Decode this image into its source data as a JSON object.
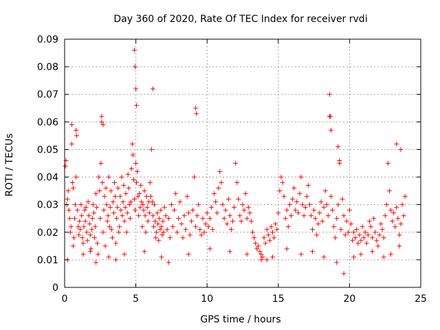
{
  "chart_data": {
    "type": "scatter",
    "title": "Day 360 of 2020, Rate Of TEC Index for receiver rvdi",
    "xlabel": "GPS time / hours",
    "ylabel": "ROTI / TECUs",
    "xlim": [
      0,
      25
    ],
    "ylim": [
      0,
      0.09
    ],
    "xticks": [
      "0",
      "5",
      "10",
      "15",
      "20",
      "25"
    ],
    "yticks": [
      "0",
      "0.01",
      "0.02",
      "0.03",
      "0.04",
      "0.05",
      "0.06",
      "0.07",
      "0.08",
      "0.09"
    ],
    "grid": true,
    "marker": "plus",
    "color": "#ff0000",
    "series": [
      {
        "x": [
          0.05,
          0.1,
          0.15,
          0.2,
          0.25,
          0.3,
          0.35,
          0.4,
          0.45,
          0.5,
          0.55,
          0.6,
          0.65,
          0.7,
          0.75,
          0.8,
          0.85,
          0.9,
          0.95,
          1.0,
          1.05,
          1.1,
          1.15,
          1.2,
          1.25,
          1.3,
          1.35,
          1.4,
          1.45,
          1.5,
          1.55,
          1.6,
          1.65,
          1.7,
          1.75,
          1.8,
          1.85,
          1.9,
          1.95,
          2.0,
          2.05,
          2.1,
          2.15,
          2.2,
          2.25,
          2.3,
          2.35,
          2.4,
          2.45,
          2.5,
          2.55,
          2.6,
          2.65,
          2.7,
          2.75,
          2.8,
          2.85,
          2.9,
          2.95,
          3.0,
          3.05,
          3.1,
          3.15,
          3.2,
          3.25,
          3.3,
          3.35,
          3.4,
          3.45,
          3.5,
          3.55,
          3.6,
          3.65,
          3.7,
          3.75,
          3.8,
          3.85,
          3.9,
          3.95,
          4.0,
          4.05,
          4.1,
          4.15,
          4.2,
          4.25,
          4.3,
          4.35,
          4.4,
          4.45,
          4.5,
          4.55,
          4.6,
          4.65,
          4.7,
          4.75,
          4.8,
          4.85,
          4.9,
          4.95,
          5.0,
          5.05,
          5.1,
          5.15,
          5.2,
          5.25,
          5.3,
          5.35,
          5.4,
          5.45,
          5.5,
          5.55,
          5.6,
          5.65,
          5.7,
          5.75,
          5.8,
          5.85,
          5.9,
          5.95,
          6.0,
          6.05,
          6.1,
          6.15,
          6.2,
          6.25,
          6.3,
          6.35,
          6.4,
          6.45,
          6.5,
          6.55,
          6.6,
          6.65,
          6.7,
          6.75,
          6.8,
          6.85,
          6.9,
          6.95,
          7.0,
          7.1,
          7.2,
          7.3,
          7.4,
          7.5,
          7.6,
          7.7,
          7.8,
          7.9,
          8.0,
          8.1,
          8.2,
          8.3,
          8.4,
          8.5,
          8.6,
          8.7,
          8.8,
          8.9,
          9.0,
          9.1,
          9.2,
          9.3,
          9.4,
          9.5,
          9.6,
          9.7,
          9.8,
          9.9,
          10.0,
          10.1,
          10.2,
          10.3,
          10.4,
          10.5,
          10.6,
          10.7,
          10.8,
          10.9,
          11.0,
          11.1,
          11.2,
          11.3,
          11.4,
          11.5,
          11.6,
          11.7,
          11.8,
          11.9,
          12.0,
          12.1,
          12.2,
          12.3,
          12.4,
          12.5,
          12.6,
          12.7,
          12.8,
          12.9,
          13.0,
          13.1,
          13.2,
          13.3,
          13.4,
          13.5,
          13.6,
          13.7,
          13.8,
          13.9,
          14.0,
          14.1,
          14.2,
          14.3,
          14.4,
          14.5,
          14.6,
          14.7,
          14.8,
          14.9,
          15.0,
          15.1,
          15.2,
          15.3,
          15.4,
          15.5,
          15.6,
          15.7,
          15.8,
          15.9,
          16.0,
          16.1,
          16.2,
          16.3,
          16.4,
          16.5,
          16.6,
          16.7,
          16.8,
          16.9,
          17.0,
          17.1,
          17.2,
          17.3,
          17.4,
          17.5,
          17.6,
          17.7,
          17.8,
          17.9,
          18.0,
          18.1,
          18.2,
          18.3,
          18.4,
          18.5,
          18.6,
          18.7,
          18.8,
          18.9,
          19.0,
          19.1,
          19.2,
          19.3,
          19.4,
          19.5,
          19.6,
          19.7,
          19.8,
          19.9,
          20.0,
          20.1,
          20.2,
          20.3,
          20.4,
          20.5,
          20.6,
          20.7,
          20.8,
          20.9,
          21.0,
          21.1,
          21.2,
          21.3,
          21.4,
          21.5,
          21.6,
          21.7,
          21.8,
          21.9,
          22.0,
          22.1,
          22.2,
          22.3,
          22.4,
          22.5,
          22.6,
          22.7,
          22.8,
          22.9,
          23.0,
          23.1,
          23.2,
          23.3,
          23.4,
          23.5,
          23.6,
          23.7,
          23.8,
          23.9,
          0.5,
          0.8,
          2.6,
          2.7,
          4.9,
          4.95,
          5.0,
          5.05,
          6.2,
          9.2,
          9.25,
          18.6,
          18.65,
          18.7,
          19.2,
          19.3,
          23.3,
          23.6,
          0.2,
          0.6,
          1.3,
          1.8,
          2.2,
          3.1,
          3.6,
          4.2,
          5.6,
          6.8,
          7.3,
          8.7,
          10.2,
          11.6,
          12.8,
          13.8,
          14.2,
          14.6,
          15.6,
          16.6,
          17.4,
          18.2,
          19.1,
          19.6,
          20.3,
          20.8,
          21.6,
          22.4,
          22.9,
          23.5
        ],
        "y": [
          0.044,
          0.046,
          0.03,
          0.032,
          0.035,
          0.028,
          0.025,
          0.02,
          0.022,
          0.052,
          0.038,
          0.036,
          0.018,
          0.025,
          0.03,
          0.04,
          0.055,
          0.028,
          0.022,
          0.019,
          0.024,
          0.021,
          0.03,
          0.026,
          0.018,
          0.016,
          0.022,
          0.028,
          0.024,
          0.029,
          0.02,
          0.017,
          0.031,
          0.026,
          0.023,
          0.019,
          0.014,
          0.021,
          0.025,
          0.03,
          0.027,
          0.018,
          0.022,
          0.034,
          0.029,
          0.016,
          0.012,
          0.04,
          0.035,
          0.025,
          0.045,
          0.06,
          0.038,
          0.02,
          0.028,
          0.033,
          0.015,
          0.036,
          0.03,
          0.024,
          0.026,
          0.04,
          0.022,
          0.029,
          0.035,
          0.021,
          0.018,
          0.031,
          0.027,
          0.038,
          0.033,
          0.016,
          0.025,
          0.029,
          0.036,
          0.02,
          0.022,
          0.033,
          0.028,
          0.04,
          0.026,
          0.031,
          0.037,
          0.024,
          0.029,
          0.034,
          0.02,
          0.027,
          0.041,
          0.036,
          0.03,
          0.025,
          0.031,
          0.043,
          0.052,
          0.048,
          0.039,
          0.032,
          0.028,
          0.045,
          0.038,
          0.042,
          0.033,
          0.026,
          0.034,
          0.029,
          0.037,
          0.031,
          0.022,
          0.03,
          0.028,
          0.035,
          0.026,
          0.02,
          0.033,
          0.029,
          0.024,
          0.031,
          0.027,
          0.038,
          0.033,
          0.05,
          0.031,
          0.026,
          0.022,
          0.03,
          0.024,
          0.018,
          0.02,
          0.027,
          0.023,
          0.017,
          0.025,
          0.021,
          0.028,
          0.022,
          0.019,
          0.024,
          0.02,
          0.029,
          0.026,
          0.021,
          0.025,
          0.018,
          0.03,
          0.022,
          0.028,
          0.034,
          0.02,
          0.025,
          0.031,
          0.023,
          0.018,
          0.026,
          0.021,
          0.033,
          0.027,
          0.019,
          0.024,
          0.028,
          0.04,
          0.022,
          0.026,
          0.03,
          0.021,
          0.019,
          0.025,
          0.02,
          0.023,
          0.027,
          0.022,
          0.025,
          0.029,
          0.021,
          0.034,
          0.031,
          0.027,
          0.036,
          0.042,
          0.038,
          0.03,
          0.025,
          0.028,
          0.023,
          0.032,
          0.026,
          0.021,
          0.024,
          0.029,
          0.045,
          0.038,
          0.032,
          0.026,
          0.024,
          0.03,
          0.028,
          0.034,
          0.025,
          0.029,
          0.027,
          0.024,
          0.02,
          0.018,
          0.016,
          0.014,
          0.015,
          0.013,
          0.012,
          0.011,
          0.018,
          0.016,
          0.021,
          0.019,
          0.017,
          0.022,
          0.02,
          0.018,
          0.023,
          0.021,
          0.027,
          0.035,
          0.04,
          0.038,
          0.033,
          0.025,
          0.028,
          0.022,
          0.03,
          0.026,
          0.032,
          0.036,
          0.028,
          0.031,
          0.027,
          0.034,
          0.04,
          0.03,
          0.026,
          0.029,
          0.033,
          0.037,
          0.03,
          0.026,
          0.021,
          0.028,
          0.025,
          0.019,
          0.023,
          0.027,
          0.031,
          0.024,
          0.029,
          0.035,
          0.03,
          0.026,
          0.062,
          0.033,
          0.028,
          0.022,
          0.018,
          0.025,
          0.03,
          0.045,
          0.021,
          0.032,
          0.026,
          0.019,
          0.024,
          0.02,
          0.028,
          0.023,
          0.017,
          0.02,
          0.018,
          0.021,
          0.016,
          0.019,
          0.017,
          0.022,
          0.018,
          0.02,
          0.016,
          0.019,
          0.024,
          0.022,
          0.018,
          0.025,
          0.02,
          0.017,
          0.015,
          0.019,
          0.023,
          0.021,
          0.018,
          0.026,
          0.03,
          0.045,
          0.035,
          0.028,
          0.024,
          0.027,
          0.022,
          0.029,
          0.025,
          0.019,
          0.023,
          0.03,
          0.026,
          0.033,
          0.059,
          0.057,
          0.062,
          0.059,
          0.086,
          0.08,
          0.072,
          0.066,
          0.072,
          0.065,
          0.063,
          0.07,
          0.062,
          0.057,
          0.051,
          0.046,
          0.052,
          0.05,
          0.01,
          0.015,
          0.012,
          0.013,
          0.009,
          0.011,
          0.01,
          0.012,
          0.013,
          0.011,
          0.009,
          0.012,
          0.014,
          0.013,
          0.012,
          0.01,
          0.01,
          0.011,
          0.014,
          0.012,
          0.013,
          0.011,
          0.009,
          0.005,
          0.011,
          0.012,
          0.013,
          0.011,
          0.012,
          0.015
        ]
      }
    ]
  }
}
